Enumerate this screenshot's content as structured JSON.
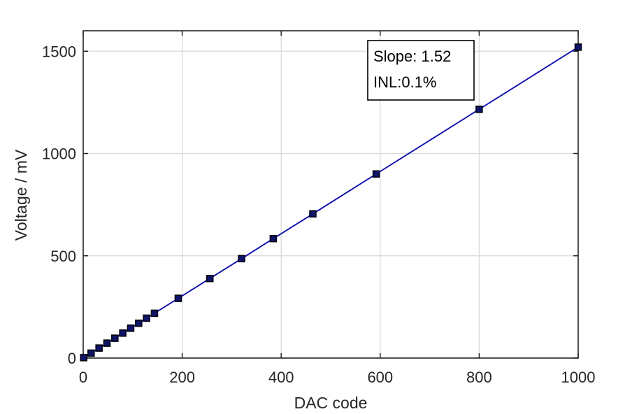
{
  "chart_data": {
    "type": "line",
    "xlabel": "DAC code",
    "ylabel": "Voltage / mV",
    "xlim": [
      0,
      1000
    ],
    "ylim": [
      0,
      1600
    ],
    "xticks": [
      0,
      200,
      400,
      600,
      800,
      1000
    ],
    "yticks": [
      0,
      500,
      1000,
      1500
    ],
    "grid": true,
    "colors": {
      "line": "#0000cc",
      "marker": "#000000",
      "marker_fill": "#0d1470",
      "grid": "#d9d9d9",
      "axes": "#262626"
    },
    "series": [
      {
        "marker": "square",
        "x": [
          1,
          16,
          32,
          48,
          64,
          80,
          96,
          112,
          128,
          144,
          192,
          256,
          320,
          384,
          464,
          592,
          800,
          1000
        ],
        "y": [
          2,
          24,
          49,
          73,
          97,
          122,
          146,
          170,
          195,
          219,
          292,
          389,
          486,
          584,
          705,
          900,
          1216,
          1520
        ]
      }
    ],
    "annotation": {
      "position": "top-right",
      "lines": [
        "Slope: 1.52",
        "INL:0.1%"
      ]
    }
  }
}
